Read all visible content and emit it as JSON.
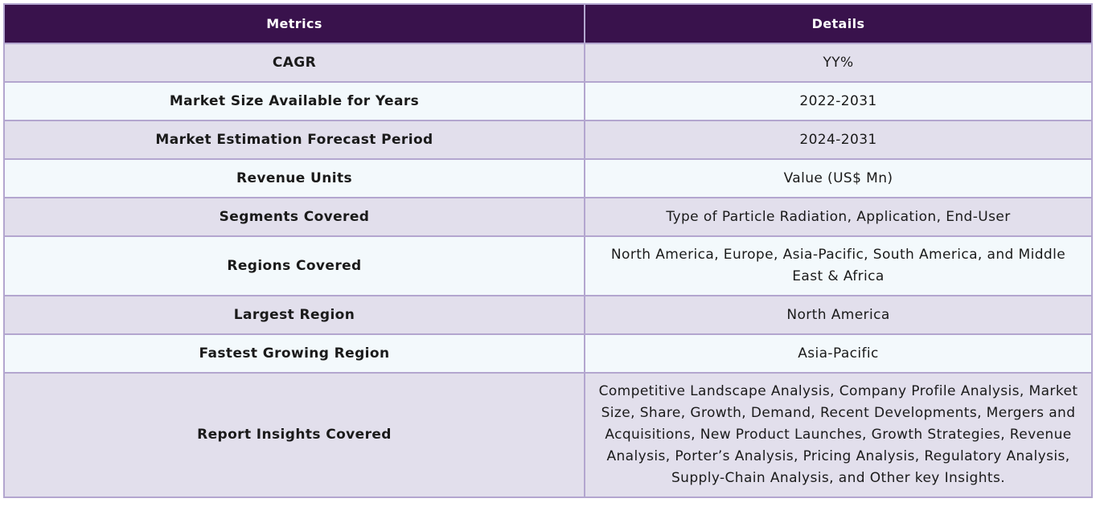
{
  "table": {
    "headers": [
      "Metrics",
      "Details"
    ],
    "rows": [
      {
        "metric": "CAGR",
        "details": "YY%"
      },
      {
        "metric": "Market Size Available for Years",
        "details": "2022-2031"
      },
      {
        "metric": "Market Estimation Forecast Period",
        "details": "2024-2031"
      },
      {
        "metric": "Revenue Units",
        "details": "Value (US$ Mn)"
      },
      {
        "metric": "Segments Covered",
        "details": "Type of Particle Radiation, Application, End-User"
      },
      {
        "metric": "Regions Covered",
        "details": "North America, Europe, Asia-Pacific, South America, and Middle East & Africa"
      },
      {
        "metric": "Largest Region",
        "details": "North America"
      },
      {
        "metric": "Fastest Growing Region",
        "details": "Asia-Pacific"
      },
      {
        "metric": "Report Insights Covered",
        "details": "Competitive Landscape Analysis, Company Profile Analysis, Market Size, Share, Growth, Demand, Recent Developments, Mergers and Acquisitions, New Product Launches, Growth Strategies, Revenue Analysis, Porter’s Analysis, Pricing Analysis, Regulatory Analysis, Supply-Chain Analysis, and Other key Insights."
      }
    ]
  },
  "colors": {
    "header_bg": "#39124c",
    "header_text": "#ffffff",
    "row_odd_bg": "#e2dfec",
    "row_even_bg": "#f3f9fc",
    "border": "#b3a6cf"
  }
}
